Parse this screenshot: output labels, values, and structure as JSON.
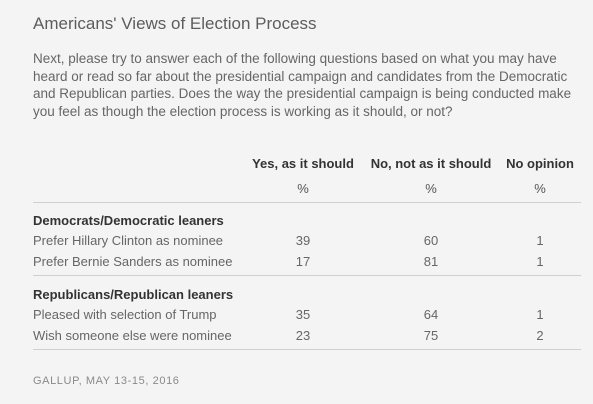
{
  "title": "Americans' Views of Election Process",
  "intro": "Next, please try to answer each of the following questions based on what you may have heard or read so far about the presidential campaign and candidates from the Democratic and Republican parties. Does the way the presidential campaign is being conducted make you feel as though the election process is working as it should, or not?",
  "table": {
    "headers": [
      "Yes, as it should",
      "No, not as it should",
      "No opinion"
    ],
    "units": [
      "%",
      "%",
      "%"
    ],
    "groups": [
      {
        "label": "Democrats/Democratic leaners",
        "rows": [
          {
            "label": "Prefer Hillary Clinton as nominee",
            "yes": "39",
            "no": "60",
            "opinion": "1"
          },
          {
            "label": "Prefer Bernie Sanders as nominee",
            "yes": "17",
            "no": "81",
            "opinion": "1"
          }
        ]
      },
      {
        "label": "Republicans/Republican leaners",
        "rows": [
          {
            "label": "Pleased with selection of Trump",
            "yes": "35",
            "no": "64",
            "opinion": "1"
          },
          {
            "label": "Wish someone else were nominee",
            "yes": "23",
            "no": "75",
            "opinion": "2"
          }
        ]
      }
    ]
  },
  "source": "GALLUP, MAY 13-15, 2016"
}
